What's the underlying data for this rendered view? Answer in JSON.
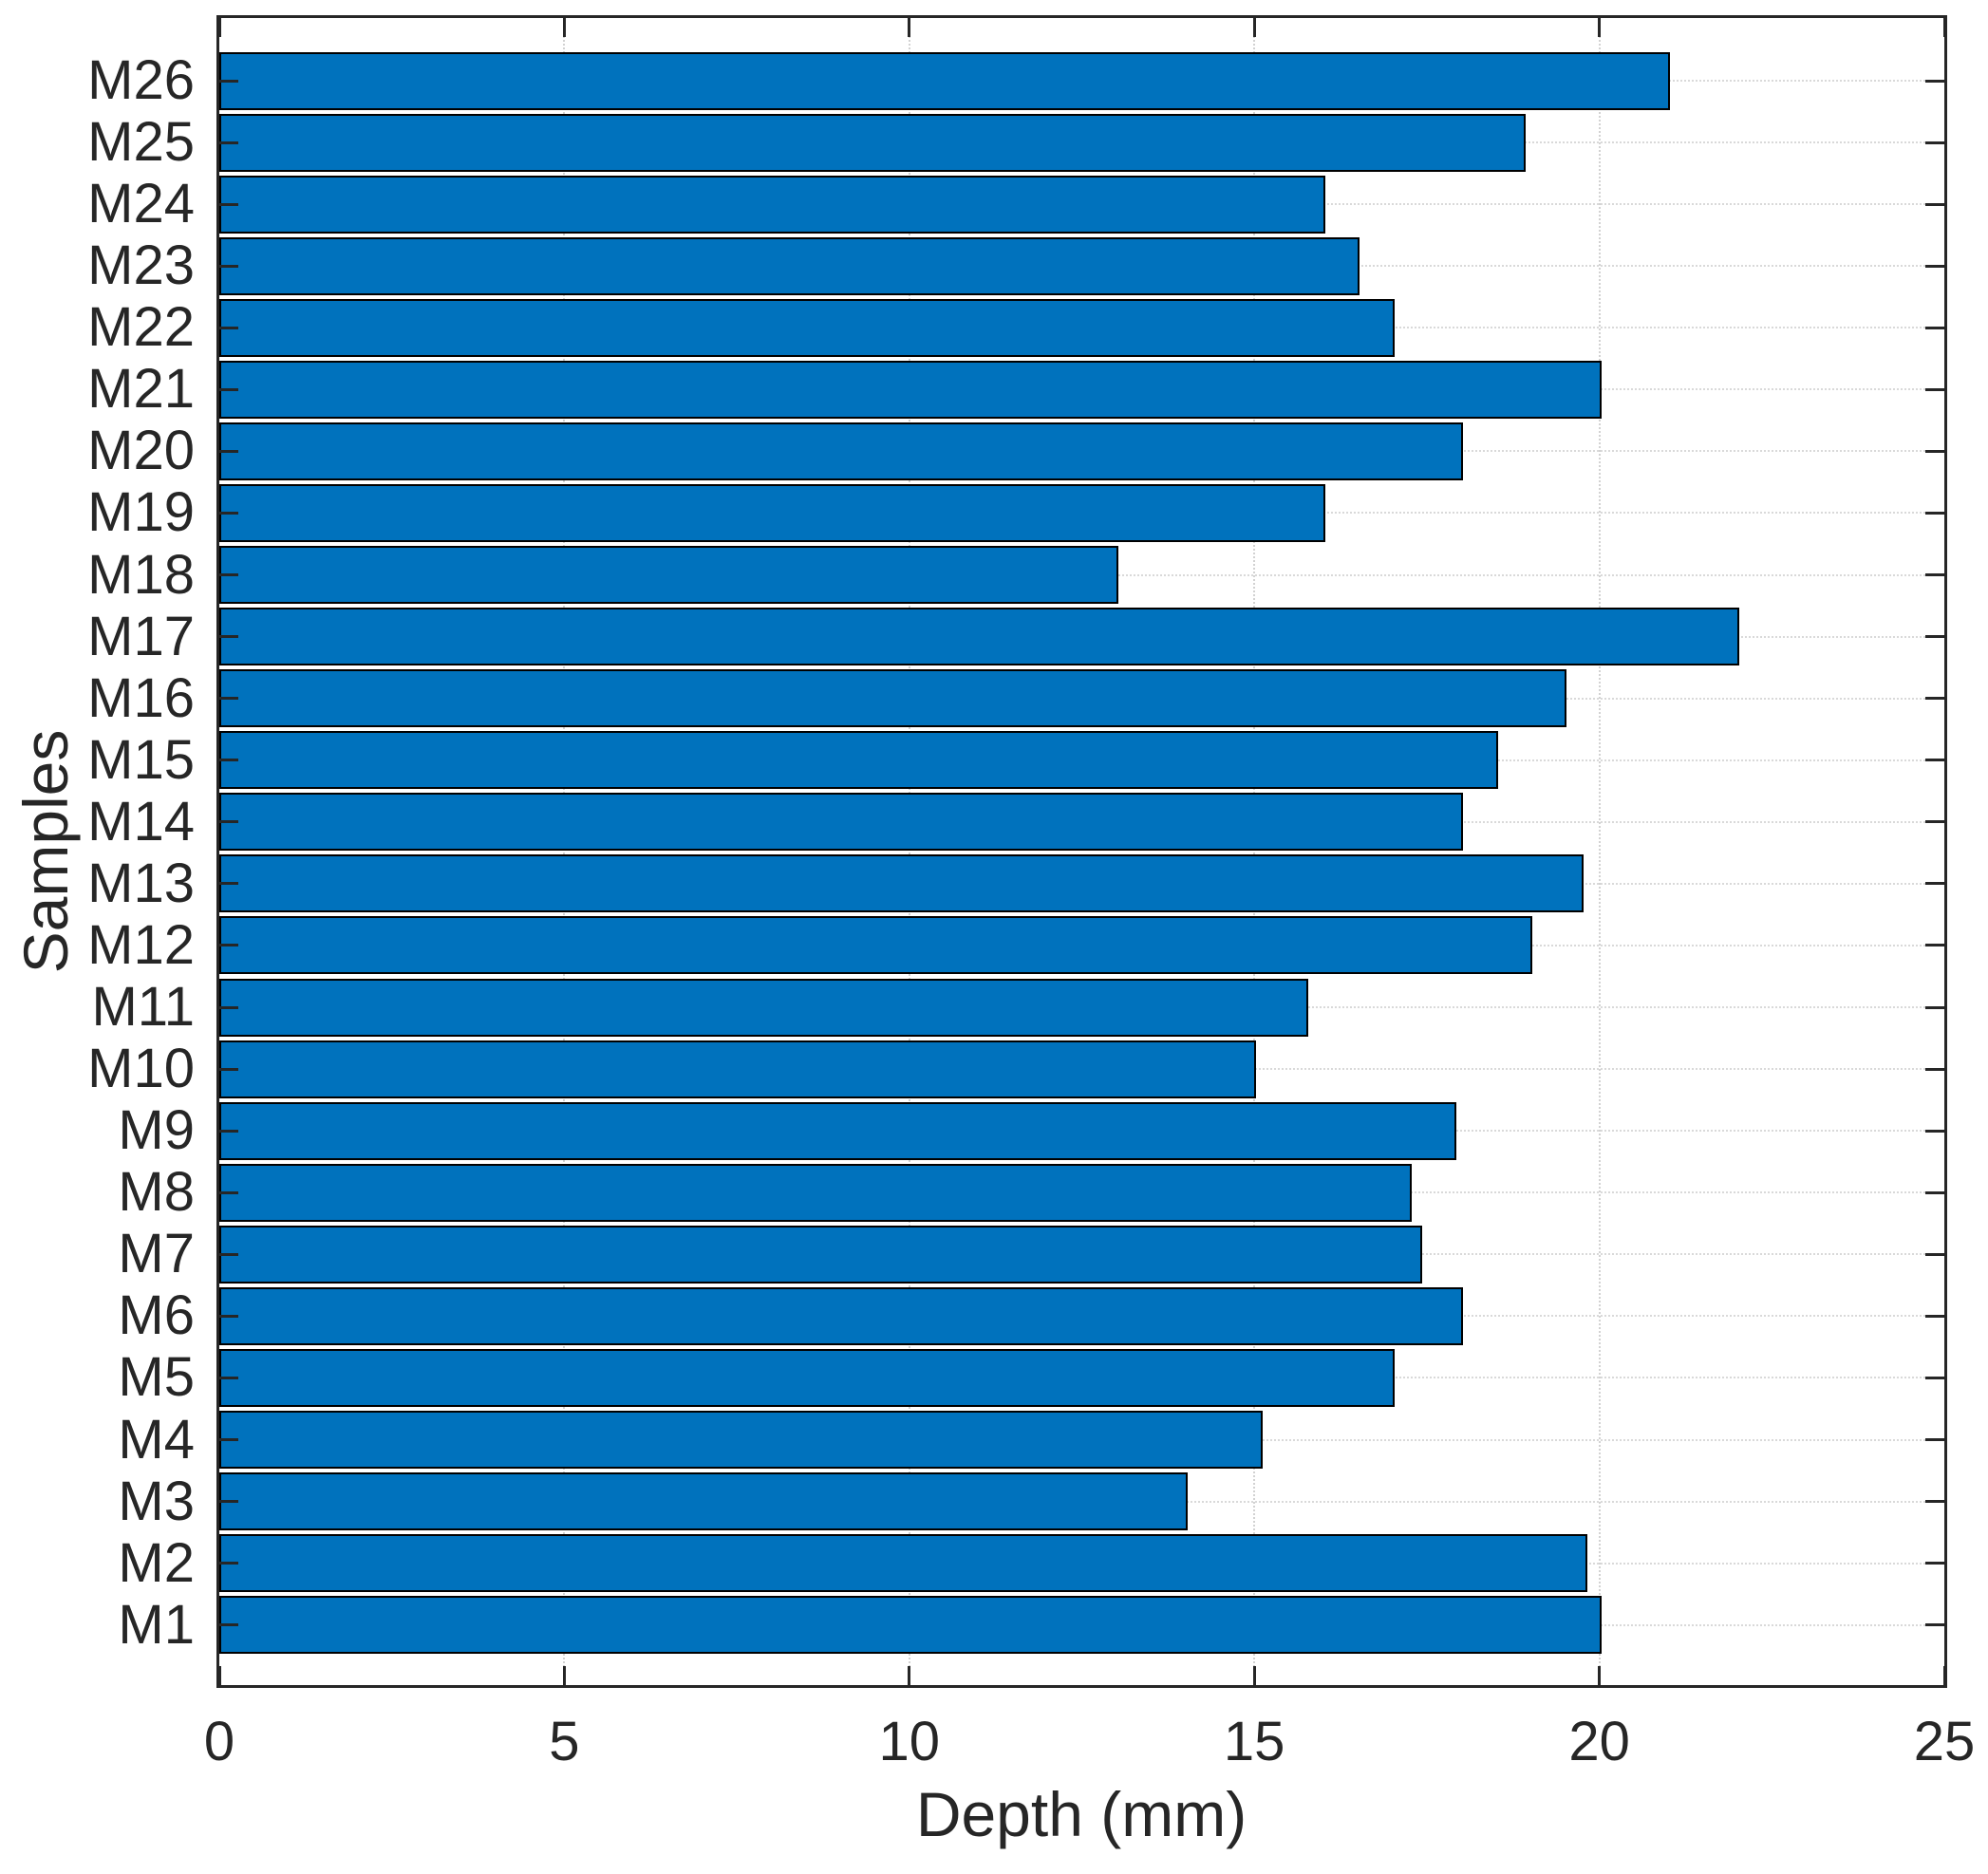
{
  "chart_data": {
    "type": "bar",
    "orientation": "horizontal",
    "title": "",
    "xlabel": "Depth (mm)",
    "ylabel": "Samples",
    "categories": [
      "M1",
      "M2",
      "M3",
      "M4",
      "M5",
      "M6",
      "M7",
      "M8",
      "M9",
      "M10",
      "M11",
      "M12",
      "M13",
      "M14",
      "M15",
      "M16",
      "M17",
      "M18",
      "M19",
      "M20",
      "M21",
      "M22",
      "M23",
      "M24",
      "M25",
      "M26"
    ],
    "values": [
      20,
      19.8,
      14,
      15.1,
      17,
      18,
      17.4,
      17.25,
      17.9,
      15,
      15.75,
      19,
      19.75,
      18,
      18.5,
      19.5,
      22,
      13,
      16,
      18,
      20,
      17,
      16.5,
      16,
      18.9,
      21
    ],
    "xlim": [
      0,
      25
    ],
    "xticks": [
      0,
      5,
      10,
      15,
      20,
      25
    ],
    "grid": true,
    "legend": null,
    "bar_color": "#0072BD",
    "bar_edge_color": "#000000",
    "axis_color": "#262626",
    "grid_color": "#d9d9d9",
    "background_color": "#ffffff"
  }
}
